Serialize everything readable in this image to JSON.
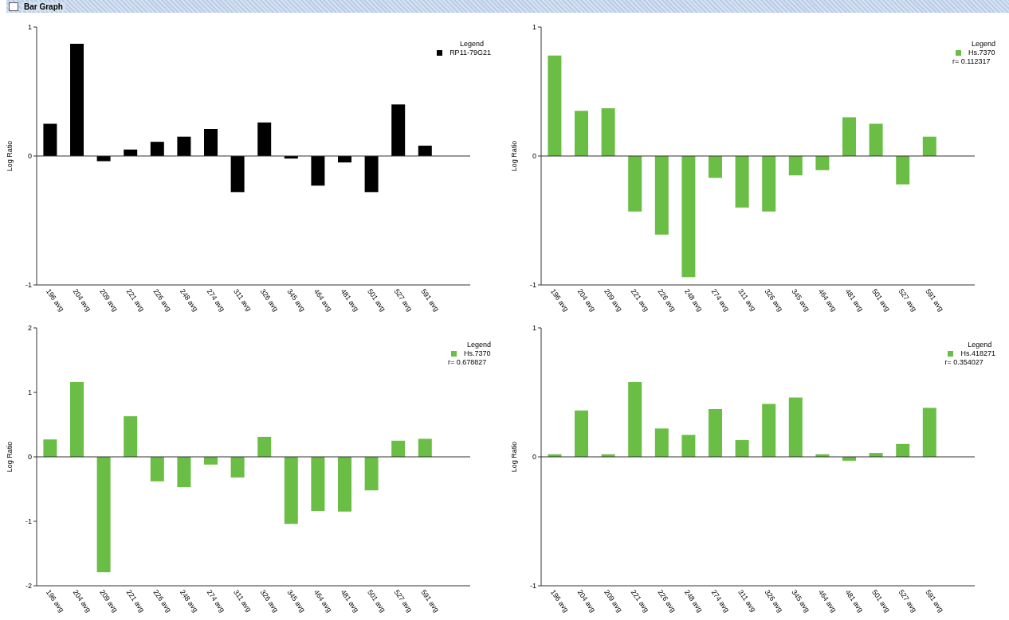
{
  "chart_data": [
    {
      "type": "bar",
      "title": "Bar Graph",
      "ylabel": "Log Ratio",
      "legend_title": "Legend",
      "categories": [
        "196 avg",
        "204 avg",
        "209 avg",
        "221 avg",
        "226 avg",
        "248 avg",
        "274 avg",
        "311 avg",
        "326 avg",
        "345 avg",
        "464 avg",
        "481 avg",
        "501 avg",
        "527 avg",
        "591 avg"
      ],
      "series": [
        {
          "name": "RP11-79G21",
          "color": "#000000",
          "values": [
            0.25,
            0.87,
            -0.04,
            0.05,
            0.11,
            0.15,
            0.21,
            -0.28,
            0.26,
            -0.02,
            -0.23,
            -0.05,
            -0.28,
            0.4,
            0.08
          ]
        }
      ],
      "ylim": [
        -1,
        1
      ],
      "yticks": [
        -1,
        0,
        1
      ],
      "ref_lines": [
        {
          "axis": "y",
          "value": 0
        }
      ],
      "legend": "top right",
      "grid": false
    },
    {
      "type": "bar",
      "ylabel": "Log Ratio",
      "legend_title": "Legend",
      "annotations": [
        "r= 0.112317"
      ],
      "categories": [
        "196 avg",
        "204 avg",
        "209 avg",
        "221 avg",
        "226 avg",
        "248 avg",
        "274 avg",
        "311 avg",
        "326 avg",
        "345 avg",
        "464 avg",
        "481 avg",
        "501 avg",
        "527 avg",
        "591 avg"
      ],
      "series": [
        {
          "name": "Hs.7370",
          "color": "#6abd45",
          "values": [
            0.78,
            0.35,
            0.37,
            -0.43,
            -0.61,
            -0.94,
            -0.17,
            -0.4,
            -0.43,
            -0.15,
            -0.11,
            0.3,
            0.25,
            -0.22,
            0.15
          ]
        }
      ],
      "ylim": [
        -1,
        1
      ],
      "yticks": [
        -1,
        0,
        1
      ],
      "ref_lines": [
        {
          "axis": "y",
          "value": 0
        }
      ],
      "legend": "top right",
      "grid": false
    },
    {
      "type": "bar",
      "ylabel": "Log Ratio",
      "legend_title": "Legend",
      "annotations": [
        "r= 0.678827"
      ],
      "categories": [
        "196 avg",
        "204 avg",
        "209 avg",
        "221 avg",
        "226 avg",
        "248 avg",
        "274 avg",
        "311 avg",
        "326 avg",
        "345 avg",
        "464 avg",
        "481 avg",
        "501 avg",
        "527 avg",
        "591 avg"
      ],
      "series": [
        {
          "name": "Hs.7370",
          "color": "#6abd45",
          "values": [
            0.27,
            1.16,
            -1.79,
            0.63,
            -0.38,
            -0.47,
            -0.12,
            -0.32,
            0.31,
            -1.04,
            -0.84,
            -0.85,
            -0.52,
            0.25,
            0.28
          ]
        }
      ],
      "ylim": [
        -2,
        2
      ],
      "yticks": [
        -2,
        -1,
        0,
        1,
        2
      ],
      "ref_lines": [
        {
          "axis": "y",
          "value": 0
        }
      ],
      "legend": "top right",
      "grid": false
    },
    {
      "type": "bar",
      "ylabel": "Log Ratio",
      "legend_title": "Legend",
      "annotations": [
        "r= 0.354027"
      ],
      "categories": [
        "196 avg",
        "204 avg",
        "209 avg",
        "221 avg",
        "226 avg",
        "248 avg",
        "274 avg",
        "311 avg",
        "326 avg",
        "345 avg",
        "464 avg",
        "481 avg",
        "501 avg",
        "527 avg",
        "591 avg"
      ],
      "series": [
        {
          "name": "Hs.418271",
          "color": "#6abd45",
          "values": [
            0.02,
            0.36,
            0.02,
            0.58,
            0.22,
            0.17,
            0.37,
            0.13,
            0.41,
            0.46,
            0.02,
            -0.03,
            0.03,
            0.1,
            0.38
          ]
        }
      ],
      "ylim": [
        -1,
        1
      ],
      "yticks": [
        -1,
        0,
        1
      ],
      "ref_lines": [
        {
          "axis": "y",
          "value": 0
        }
      ],
      "legend": "top right",
      "grid": false
    }
  ]
}
